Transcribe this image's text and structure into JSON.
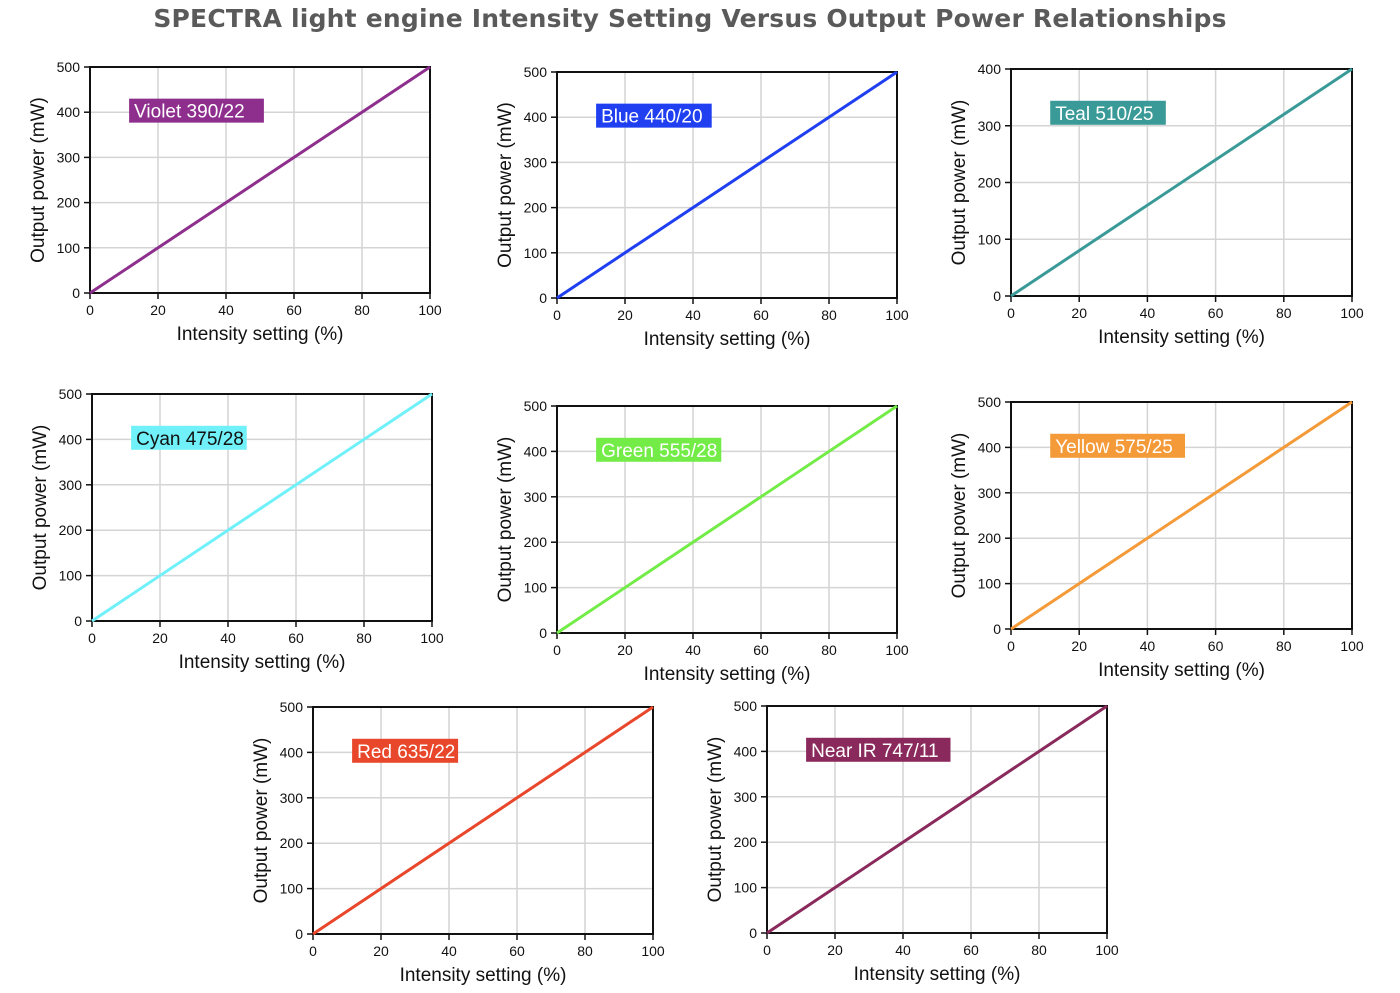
{
  "title": "SPECTRA light engine Intensity Setting Versus Output Power Relationships",
  "chart_data": [
    {
      "type": "line",
      "label": "Violet 390/22",
      "color": "#8e2f8e",
      "label_text_color": "#ffffff",
      "x": [
        0,
        100
      ],
      "y": [
        0,
        500
      ],
      "xlim": [
        0,
        100
      ],
      "ylim": [
        0,
        500
      ],
      "xticks": [
        0,
        20,
        40,
        60,
        80,
        100
      ],
      "yticks": [
        0,
        100,
        200,
        300,
        400,
        500
      ],
      "xlabel": "Intensity setting (%)",
      "ylabel": "Output power (mW)",
      "grid": true
    },
    {
      "type": "line",
      "label": "Blue 440/20",
      "color": "#1f3ff0",
      "label_text_color": "#ffffff",
      "x": [
        0,
        100
      ],
      "y": [
        0,
        500
      ],
      "xlim": [
        0,
        100
      ],
      "ylim": [
        0,
        500
      ],
      "xticks": [
        0,
        20,
        40,
        60,
        80,
        100
      ],
      "yticks": [
        0,
        100,
        200,
        300,
        400,
        500
      ],
      "xlabel": "Intensity setting (%)",
      "ylabel": "Output power (mW)",
      "grid": true
    },
    {
      "type": "line",
      "label": "Teal 510/25",
      "color": "#3a9a98",
      "label_text_color": "#ffffff",
      "x": [
        0,
        100
      ],
      "y": [
        0,
        400
      ],
      "xlim": [
        0,
        100
      ],
      "ylim": [
        0,
        400
      ],
      "xticks": [
        0,
        20,
        40,
        60,
        80,
        100
      ],
      "yticks": [
        0,
        100,
        200,
        300,
        400
      ],
      "xlabel": "Intensity setting (%)",
      "ylabel": "Output power (mW)",
      "grid": true
    },
    {
      "type": "line",
      "label": "Cyan 475/28",
      "color": "#70f0f8",
      "label_text_color": "#111111",
      "x": [
        0,
        100
      ],
      "y": [
        0,
        500
      ],
      "xlim": [
        0,
        100
      ],
      "ylim": [
        0,
        500
      ],
      "xticks": [
        0,
        20,
        40,
        60,
        80,
        100
      ],
      "yticks": [
        0,
        100,
        200,
        300,
        400,
        500
      ],
      "xlabel": "Intensity setting (%)",
      "ylabel": "Output power (mW)",
      "grid": true
    },
    {
      "type": "line",
      "label": "Green 555/28",
      "color": "#74ec48",
      "label_text_color": "#ffffff",
      "x": [
        0,
        100
      ],
      "y": [
        0,
        500
      ],
      "xlim": [
        0,
        100
      ],
      "ylim": [
        0,
        500
      ],
      "xticks": [
        0,
        20,
        40,
        60,
        80,
        100
      ],
      "yticks": [
        0,
        100,
        200,
        300,
        400,
        500
      ],
      "xlabel": "Intensity setting (%)",
      "ylabel": "Output power (mW)",
      "grid": true
    },
    {
      "type": "line",
      "label": "Yellow 575/25",
      "color": "#f49a38",
      "label_text_color": "#ffffff",
      "x": [
        0,
        100
      ],
      "y": [
        0,
        500
      ],
      "xlim": [
        0,
        100
      ],
      "ylim": [
        0,
        500
      ],
      "xticks": [
        0,
        20,
        40,
        60,
        80,
        100
      ],
      "yticks": [
        0,
        100,
        200,
        300,
        400,
        500
      ],
      "xlabel": "Intensity setting (%)",
      "ylabel": "Output power (mW)",
      "grid": true
    },
    {
      "type": "line",
      "label": "Red 635/22",
      "color": "#e8472b",
      "label_text_color": "#ffffff",
      "x": [
        0,
        100
      ],
      "y": [
        0,
        500
      ],
      "xlim": [
        0,
        100
      ],
      "ylim": [
        0,
        500
      ],
      "xticks": [
        0,
        20,
        40,
        60,
        80,
        100
      ],
      "yticks": [
        0,
        100,
        200,
        300,
        400,
        500
      ],
      "xlabel": "Intensity setting (%)",
      "ylabel": "Output power (mW)",
      "grid": true
    },
    {
      "type": "line",
      "label": "Near IR 747/11",
      "color": "#8a2a5c",
      "label_text_color": "#ffffff",
      "x": [
        0,
        100
      ],
      "y": [
        0,
        500
      ],
      "xlim": [
        0,
        100
      ],
      "ylim": [
        0,
        500
      ],
      "xticks": [
        0,
        20,
        40,
        60,
        80,
        100
      ],
      "yticks": [
        0,
        100,
        200,
        300,
        400,
        500
      ],
      "xlabel": "Intensity setting (%)",
      "ylabel": "Output power (mW)",
      "grid": true
    }
  ]
}
